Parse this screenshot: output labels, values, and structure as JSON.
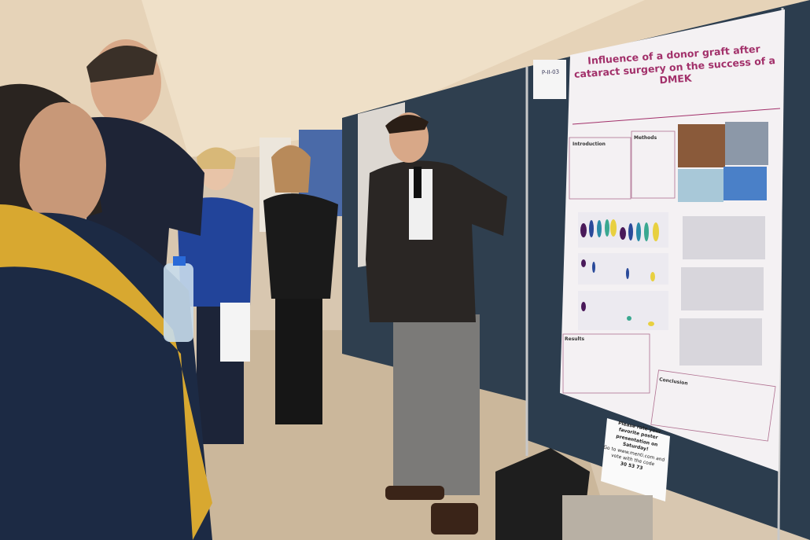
{
  "poster": {
    "title": "Influence of a donor graft after cataract surgery on the success of a DMEK",
    "sections": {
      "introduction": "Introduction",
      "methods": "Methods",
      "results": "Results",
      "conclusion": "Conclusion"
    }
  },
  "board_label": "P-II-03",
  "sign": {
    "line1": "Please rate your favorite poster presentation on Saturday!",
    "line2": "Go to www.menti.com and vote with the code",
    "code": "30 53 73"
  },
  "colors": {
    "board": "#2f3f4f",
    "poster": "#f4f1f3",
    "title_accent": "#a2306a",
    "wall": "#d8c7b0"
  }
}
